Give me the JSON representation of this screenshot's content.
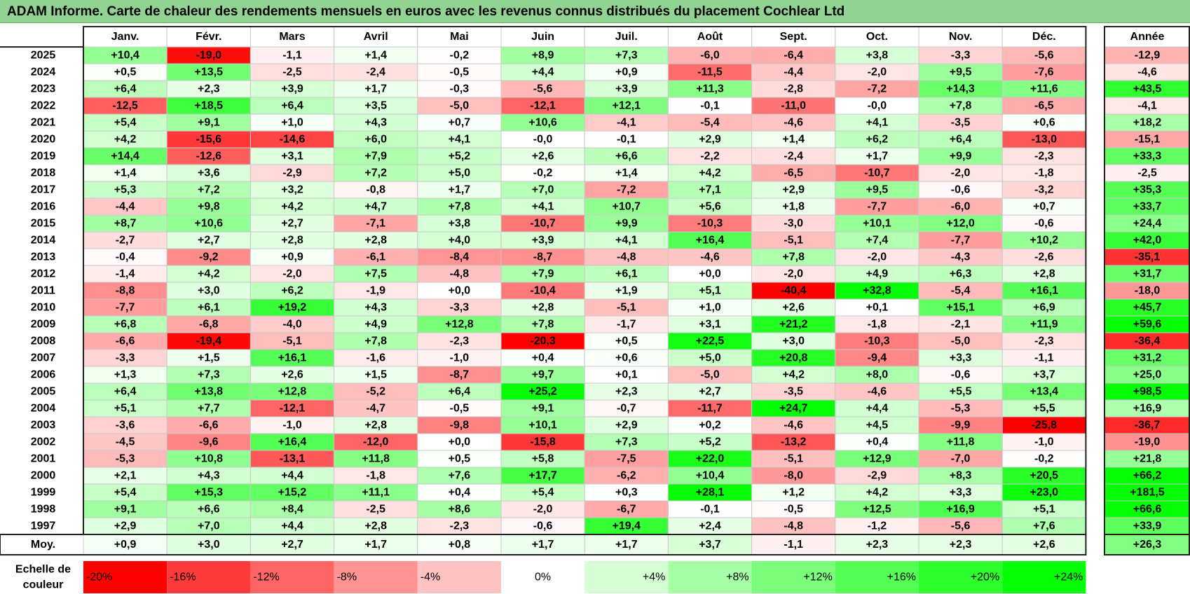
{
  "title": "ADAM Informe. Carte de chaleur des rendements mensuels en euros avec les revenus connus distribués du placement Cochlear Ltd",
  "chart_data": {
    "type": "heatmap",
    "title": "ADAM Informe. Carte de chaleur des rendements mensuels en euros avec les revenus connus distribués du placement Cochlear Ltd",
    "months": [
      "Janv.",
      "Févr.",
      "Mars",
      "Avril",
      "Mai",
      "Juin",
      "Juil.",
      "Août",
      "Sept.",
      "Oct.",
      "Nov.",
      "Déc."
    ],
    "annual_header": "Année",
    "average_label": "Moy.",
    "rows": [
      {
        "year": "2025",
        "values": [
          "+10,4",
          "-19,0",
          "-1,1",
          "+1,4",
          "-0,2",
          "+8,9",
          "+7,3",
          "-6,0",
          "-6,4",
          "+3,8",
          "-3,3",
          "-5,6"
        ],
        "annual": "-12,9"
      },
      {
        "year": "2024",
        "values": [
          "+0,5",
          "+13,5",
          "-2,5",
          "-2,4",
          "-0,5",
          "+4,4",
          "+0,9",
          "-11,5",
          "-4,4",
          "-2,0",
          "+9,5",
          "-7,6"
        ],
        "annual": "-4,6"
      },
      {
        "year": "2023",
        "values": [
          "+6,4",
          "+2,3",
          "+3,9",
          "+1,7",
          "-0,3",
          "-5,6",
          "+3,9",
          "+11,3",
          "-2,8",
          "-7,2",
          "+14,3",
          "+11,6"
        ],
        "annual": "+43,5"
      },
      {
        "year": "2022",
        "values": [
          "-12,5",
          "+18,5",
          "+6,4",
          "+3,5",
          "-5,0",
          "-12,1",
          "+12,1",
          "-0,1",
          "-11,0",
          "-0,0",
          "+7,8",
          "-6,5"
        ],
        "annual": "-4,1"
      },
      {
        "year": "2021",
        "values": [
          "+5,4",
          "+9,1",
          "+1,0",
          "+4,3",
          "+0,7",
          "+10,6",
          "-4,1",
          "-5,4",
          "-4,6",
          "+4,1",
          "-3,5",
          "+0,6"
        ],
        "annual": "+18,2"
      },
      {
        "year": "2020",
        "values": [
          "+4,2",
          "-15,6",
          "-14,6",
          "+6,0",
          "+4,1",
          "-0,0",
          "-0,1",
          "+2,9",
          "+1,4",
          "+6,2",
          "+6,4",
          "-13,0"
        ],
        "annual": "-15,1"
      },
      {
        "year": "2019",
        "values": [
          "+14,4",
          "-12,6",
          "+3,1",
          "+7,9",
          "+5,2",
          "+2,6",
          "+6,6",
          "-2,2",
          "-2,4",
          "+1,7",
          "+9,9",
          "-2,3"
        ],
        "annual": "+33,3"
      },
      {
        "year": "2018",
        "values": [
          "+1,4",
          "+3,6",
          "-2,9",
          "+7,2",
          "+5,0",
          "-0,2",
          "+1,4",
          "+4,2",
          "-6,5",
          "-10,7",
          "-2,0",
          "-1,8"
        ],
        "annual": "-2,5"
      },
      {
        "year": "2017",
        "values": [
          "+5,3",
          "+7,2",
          "+3,2",
          "-0,8",
          "+1,7",
          "+7,0",
          "-7,2",
          "+7,1",
          "+2,9",
          "+9,5",
          "-0,6",
          "-3,2"
        ],
        "annual": "+35,3"
      },
      {
        "year": "2016",
        "values": [
          "-4,4",
          "+9,8",
          "+4,2",
          "+4,7",
          "+7,8",
          "+4,1",
          "+10,7",
          "+5,6",
          "+1,8",
          "-7,7",
          "-6,0",
          "+0,7"
        ],
        "annual": "+33,7"
      },
      {
        "year": "2015",
        "values": [
          "+8,7",
          "+10,6",
          "+2,7",
          "-7,1",
          "+3,8",
          "-10,7",
          "+9,9",
          "-10,3",
          "-3,0",
          "+10,1",
          "+12,0",
          "-0,6"
        ],
        "annual": "+24,4"
      },
      {
        "year": "2014",
        "values": [
          "-2,7",
          "+2,7",
          "+2,8",
          "+2,8",
          "+4,0",
          "+3,9",
          "+4,1",
          "+16,4",
          "-5,1",
          "+7,4",
          "-7,7",
          "+10,2"
        ],
        "annual": "+42,0"
      },
      {
        "year": "2013",
        "values": [
          "-0,4",
          "-9,2",
          "+0,9",
          "-6,1",
          "-8,4",
          "-8,7",
          "-4,8",
          "-4,6",
          "+7,8",
          "-2,0",
          "-4,3",
          "-2,6"
        ],
        "annual": "-35,1"
      },
      {
        "year": "2012",
        "values": [
          "-1,4",
          "+4,2",
          "-2,0",
          "+7,5",
          "-4,8",
          "+7,9",
          "+6,1",
          "+0,0",
          "-2,0",
          "+4,9",
          "+6,3",
          "+2,8"
        ],
        "annual": "+31,7"
      },
      {
        "year": "2011",
        "values": [
          "-8,8",
          "+3,0",
          "+6,2",
          "-1,9",
          "+0,0",
          "-10,4",
          "+1,9",
          "+5,1",
          "-40,4",
          "+32,8",
          "-5,4",
          "+16,1"
        ],
        "annual": "-18,0"
      },
      {
        "year": "2010",
        "values": [
          "-7,7",
          "+6,1",
          "+19,2",
          "+4,3",
          "-3,3",
          "+2,8",
          "-5,1",
          "+1,0",
          "+2,6",
          "+0,1",
          "+15,1",
          "+6,9"
        ],
        "annual": "+45,7"
      },
      {
        "year": "2009",
        "values": [
          "+6,8",
          "-6,8",
          "-4,0",
          "+4,9",
          "+12,8",
          "+7,8",
          "-1,7",
          "+3,1",
          "+21,2",
          "-1,8",
          "-2,1",
          "+11,9"
        ],
        "annual": "+59,6"
      },
      {
        "year": "2008",
        "values": [
          "-6,6",
          "-19,4",
          "-5,1",
          "+7,8",
          "-2,3",
          "-20,3",
          "+0,5",
          "+22,5",
          "+3,0",
          "-10,3",
          "-5,0",
          "-2,3"
        ],
        "annual": "-36,4"
      },
      {
        "year": "2007",
        "values": [
          "-3,3",
          "+1,5",
          "+16,1",
          "-1,6",
          "-1,0",
          "+0,4",
          "+0,6",
          "+5,0",
          "+20,8",
          "-9,4",
          "+3,3",
          "-1,1"
        ],
        "annual": "+31,2"
      },
      {
        "year": "2006",
        "values": [
          "+1,3",
          "+7,3",
          "+2,6",
          "+1,5",
          "-8,7",
          "+9,7",
          "+0,1",
          "-5,0",
          "+4,2",
          "+8,0",
          "-0,6",
          "+3,7"
        ],
        "annual": "+25,0"
      },
      {
        "year": "2005",
        "values": [
          "+6,4",
          "+13,8",
          "+12,8",
          "-5,2",
          "+6,4",
          "+25,2",
          "+2,3",
          "+2,7",
          "-3,5",
          "-4,6",
          "+5,5",
          "+13,4"
        ],
        "annual": "+98,5"
      },
      {
        "year": "2004",
        "values": [
          "+5,1",
          "+7,7",
          "-12,1",
          "-4,7",
          "-0,5",
          "+9,1",
          "-0,7",
          "-11,7",
          "+24,7",
          "+4,4",
          "-5,3",
          "+5,5"
        ],
        "annual": "+16,9"
      },
      {
        "year": "2003",
        "values": [
          "-3,6",
          "-6,6",
          "-1,0",
          "+2,8",
          "-9,8",
          "+10,1",
          "+2,9",
          "+0,2",
          "-4,6",
          "+4,5",
          "-9,9",
          "-25,8"
        ],
        "annual": "-36,7"
      },
      {
        "year": "2002",
        "values": [
          "-4,5",
          "-9,6",
          "+16,4",
          "-12,0",
          "+0,0",
          "-15,8",
          "+7,3",
          "+5,2",
          "-13,2",
          "+0,4",
          "+11,8",
          "-1,0"
        ],
        "annual": "-19,0"
      },
      {
        "year": "2001",
        "values": [
          "-5,3",
          "+10,8",
          "-13,1",
          "+11,8",
          "+0,5",
          "+5,8",
          "-7,5",
          "+22,0",
          "-5,1",
          "+12,9",
          "-7,0",
          "-0,2"
        ],
        "annual": "+21,8"
      },
      {
        "year": "2000",
        "values": [
          "+2,1",
          "+4,3",
          "+4,4",
          "-1,8",
          "+7,6",
          "+17,7",
          "-6,2",
          "+10,4",
          "-8,0",
          "-2,9",
          "+8,3",
          "+20,5"
        ],
        "annual": "+66,2"
      },
      {
        "year": "1999",
        "values": [
          "+5,4",
          "+15,3",
          "+15,2",
          "+11,1",
          "+0,4",
          "+5,4",
          "+0,3",
          "+28,1",
          "+1,2",
          "+4,2",
          "+3,3",
          "+23,0"
        ],
        "annual": "+181,5"
      },
      {
        "year": "1998",
        "values": [
          "+9,1",
          "+6,6",
          "+8,4",
          "-2,5",
          "+8,6",
          "-2,0",
          "-6,7",
          "-0,1",
          "-0,5",
          "+12,5",
          "+16,9",
          "+5,1"
        ],
        "annual": "+66,6"
      },
      {
        "year": "1997",
        "values": [
          "+2,9",
          "+7,0",
          "+4,4",
          "+2,8",
          "-2,3",
          "-0,6",
          "+19,4",
          "+2,4",
          "-4,8",
          "-1,2",
          "-5,6",
          "+7,6"
        ],
        "annual": "+33,9"
      }
    ],
    "average": {
      "values": [
        "+0,9",
        "+3,0",
        "+2,7",
        "+1,7",
        "+0,8",
        "+1,7",
        "+1,7",
        "+3,7",
        "-1,1",
        "+2,3",
        "+2,3",
        "+2,6"
      ],
      "annual": "+26,3"
    },
    "color_scale": {
      "label_line1": "Echelle de",
      "label_line2": "couleur",
      "ticks": [
        "-20%",
        "-16%",
        "-12%",
        "-8%",
        "-4%",
        "0%",
        "+4%",
        "+8%",
        "+12%",
        "+16%",
        "+20%",
        "+24%"
      ],
      "tick_values": [
        -20,
        -16,
        -12,
        -8,
        -4,
        0,
        4,
        8,
        12,
        16,
        20,
        24
      ],
      "colors": [
        "#fe0000",
        "#fe3a3a",
        "#fe6565",
        "#fe9393",
        "#ffc2c2",
        "#ffffff",
        "#d5fed5",
        "#a6fea6",
        "#7cfe7c",
        "#55fe55",
        "#2efe2e",
        "#05fe05"
      ]
    },
    "colors": {
      "negative_max": "#fe0000",
      "zero": "#ffffff",
      "positive_max": "#05fe05",
      "title_bg": "#92d393"
    }
  }
}
